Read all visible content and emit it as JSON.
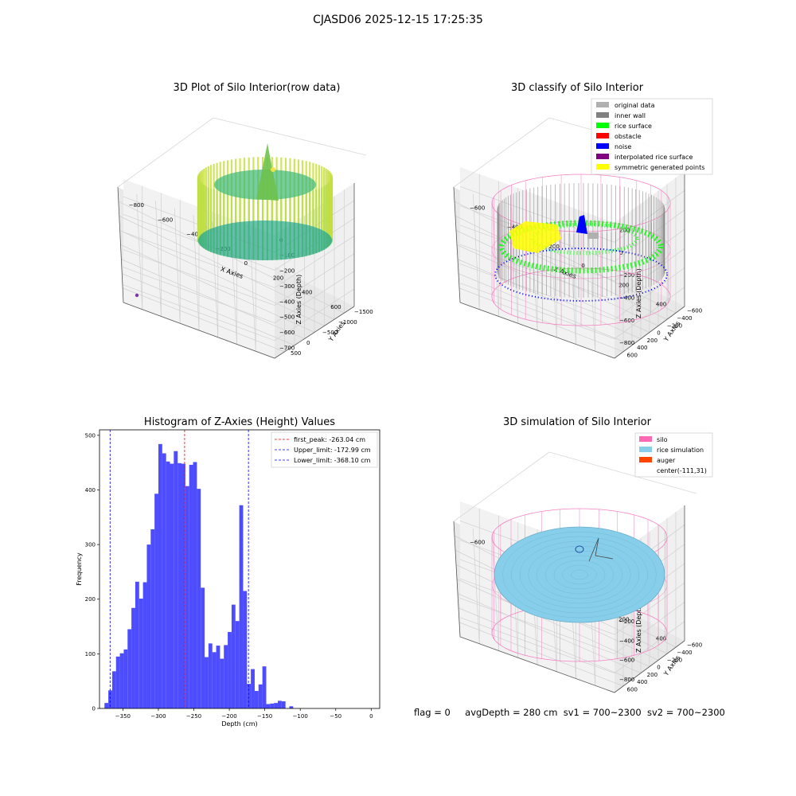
{
  "suptitle": "CJASD06 2025-12-15 17:25:35",
  "colors": {
    "pink": "#f580c0",
    "blue": "#0000ff",
    "green": "#00ff00",
    "gray": "#888888",
    "yellow": "#ffff00",
    "sky": "#87ceeb",
    "hist": "#4d4dff"
  },
  "chart_data": [
    {
      "type": "scatter3d",
      "title": "3D Plot of Silo Interior(row data)",
      "xlabel": "X Axies",
      "ylabel": "Y Axies",
      "zlabel": "Z Axies (Depth)",
      "xticks": [
        "−800",
        "−600",
        "−400",
        "−200",
        "0",
        "200",
        "400",
        "600"
      ],
      "yticks": [
        "−1500",
        "−1000",
        "−500",
        "0",
        "500"
      ],
      "zticks": [
        "0",
        "−100",
        "−200",
        "−300",
        "−400",
        "−500",
        "−600",
        "−700"
      ]
    },
    {
      "type": "scatter3d",
      "title": "3D classify of Silo Interior",
      "xlabel": "X Axies",
      "ylabel": "Y Axies",
      "zlabel": "Z Axies (Depth)",
      "xticks": [
        "−600",
        "−400",
        "−200",
        "0",
        "200",
        "400"
      ],
      "yticks": [
        "−600",
        "−400",
        "−200",
        "0",
        "200",
        "400",
        "600"
      ],
      "zticks": [
        "200",
        "0",
        "−200",
        "−400",
        "−600",
        "−800"
      ],
      "legend": [
        {
          "label": "original data",
          "color": "#b0b0b0"
        },
        {
          "label": "inner wall",
          "color": "#808080"
        },
        {
          "label": "rice surface",
          "color": "#00ff00"
        },
        {
          "label": "obstacle",
          "color": "#ff0000"
        },
        {
          "label": "noise",
          "color": "#0000ff"
        },
        {
          "label": "interpolated rice surface",
          "color": "#800080"
        },
        {
          "label": "symmetric generated points",
          "color": "#ffff00"
        }
      ],
      "legend_loc": "upper right"
    },
    {
      "type": "bar",
      "title": "Histogram of Z-Axies (Height) Values",
      "xlabel": "Depth (cm)",
      "ylabel": "Frequency",
      "xlim": [
        -383,
        12
      ],
      "ylim": [
        0,
        510
      ],
      "xticks": [
        -350,
        -300,
        -250,
        -200,
        -150,
        -100,
        -50,
        0
      ],
      "yticks": [
        0,
        100,
        200,
        300,
        400,
        500
      ],
      "bin_width": 5.43,
      "bin_start": -376,
      "values": [
        10,
        33,
        68,
        95,
        101,
        108,
        145,
        184,
        232,
        201,
        231,
        300,
        328,
        393,
        484,
        467,
        452,
        448,
        471,
        449,
        448,
        407,
        446,
        451,
        402,
        221,
        94,
        119,
        103,
        115,
        91,
        116,
        140,
        190,
        160,
        372,
        215,
        45,
        72,
        32,
        44,
        77,
        8,
        9,
        10,
        14,
        13,
        0,
        4
      ],
      "vlines": [
        {
          "label": "first_peak: -263.04 cm",
          "x": -263.04,
          "color": "#ff0000"
        },
        {
          "label": "Upper_limit: -172.99 cm",
          "x": -172.99,
          "color": "#0000ff"
        },
        {
          "label": "Lower_limit: -368.10 cm",
          "x": -368.1,
          "color": "#0000ff"
        }
      ]
    },
    {
      "type": "surface3d",
      "title": "3D simulation of Silo Interior",
      "xlabel": "X Axies",
      "ylabel": "Y Axies",
      "zlabel": "Z Axies (Depth)",
      "xticks": [
        "−600",
        "−400",
        "−200",
        "0",
        "200",
        "400"
      ],
      "yticks": [
        "−600",
        "−400",
        "−200",
        "0",
        "200",
        "400",
        "600"
      ],
      "zticks": [
        "400",
        "200",
        "0",
        "−200",
        "−400",
        "−600",
        "−800"
      ],
      "legend": [
        {
          "label": "silo",
          "color": "#ff69b4"
        },
        {
          "label": "rice simulation",
          "color": "#87ceeb"
        },
        {
          "label": "auger",
          "color": "#ff4500"
        },
        {
          "label": "center(-111,31)",
          "color": ""
        }
      ]
    }
  ],
  "footer": {
    "flag": "flag = 0",
    "avg": "avgDepth = 280 cm",
    "sv1": "sv1 = 700~2300",
    "sv2": "sv2 = 700~2300"
  }
}
